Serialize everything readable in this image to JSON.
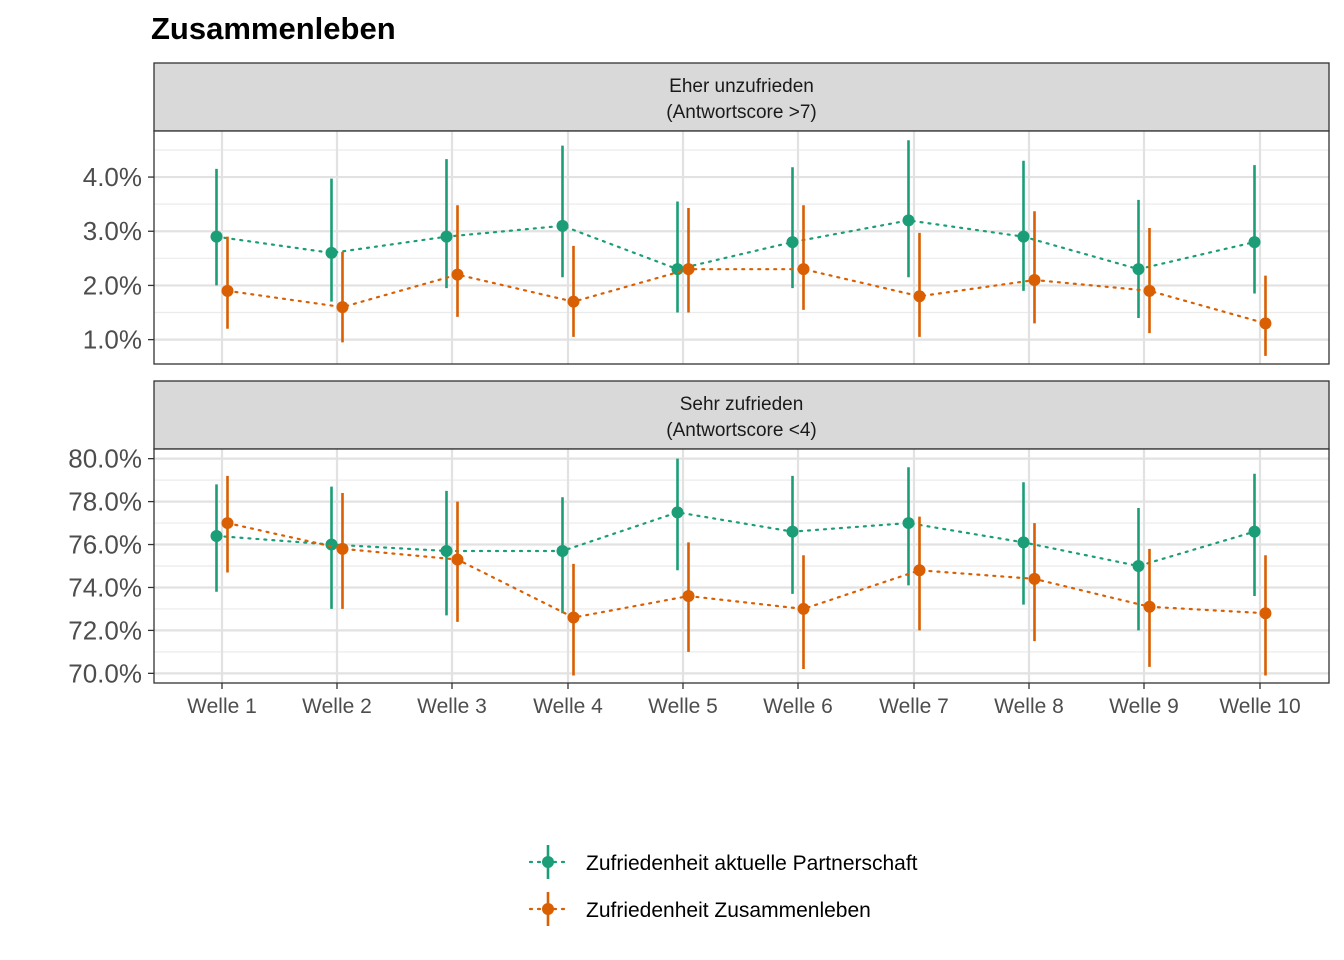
{
  "chart_data": {
    "type": "scatter",
    "title": "Zusammenleben",
    "xlabel": "",
    "ylabel": "",
    "grid": true,
    "legend_position": "bottom",
    "categories": [
      "Welle 1",
      "Welle 2",
      "Welle 3",
      "Welle 4",
      "Welle 5",
      "Welle 6",
      "Welle 7",
      "Welle 8",
      "Welle 9",
      "Welle 10"
    ],
    "series_styles": [
      {
        "name": "Zufriedenheit aktuelle Partnerschaft",
        "color": "#1b9e77"
      },
      {
        "name": "Zufriedenheit Zusammenleben",
        "color": "#d95f02"
      }
    ],
    "panels": [
      {
        "strip_line1": "Eher unzufrieden",
        "strip_line2": "(Antwortscore >7)",
        "ylim": [
          0.55,
          4.85
        ],
        "yticks": [
          1.0,
          2.0,
          3.0,
          4.0
        ],
        "ytick_labels": [
          "1.0%",
          "2.0%",
          "3.0%",
          "4.0%"
        ],
        "series": [
          {
            "name": "Zufriedenheit aktuelle Partnerschaft",
            "values": [
              2.9,
              2.6,
              2.9,
              3.1,
              2.3,
              2.8,
              3.2,
              2.9,
              2.3,
              2.8
            ],
            "lower": [
              2.0,
              1.7,
              1.95,
              2.15,
              1.5,
              1.95,
              2.15,
              1.9,
              1.4,
              1.85
            ],
            "upper": [
              4.15,
              3.97,
              4.33,
              4.58,
              3.55,
              4.18,
              4.68,
              4.3,
              3.58,
              4.22
            ]
          },
          {
            "name": "Zufriedenheit Zusammenleben",
            "values": [
              1.9,
              1.6,
              2.2,
              1.7,
              2.3,
              2.3,
              1.8,
              2.1,
              1.9,
              1.3
            ],
            "lower": [
              1.2,
              0.95,
              1.42,
              1.05,
              1.5,
              1.55,
              1.05,
              1.3,
              1.12,
              0.7
            ],
            "upper": [
              2.9,
              2.62,
              3.48,
              2.73,
              3.43,
              3.48,
              2.97,
              3.37,
              3.06,
              2.18
            ]
          }
        ]
      },
      {
        "strip_line1": "Sehr zufrieden",
        "strip_line2": "(Antwortscore <4)",
        "ylim": [
          69.55,
          80.45
        ],
        "yticks": [
          70,
          72,
          74,
          76,
          78,
          80
        ],
        "ytick_labels": [
          "70.0%",
          "72.0%",
          "74.0%",
          "76.0%",
          "78.0%",
          "80.0%"
        ],
        "series": [
          {
            "name": "Zufriedenheit aktuelle Partnerschaft",
            "values": [
              76.4,
              76.0,
              75.7,
              75.7,
              77.5,
              76.6,
              77.0,
              76.1,
              75.0,
              76.6
            ],
            "lower": [
              73.8,
              73.0,
              72.7,
              72.8,
              74.8,
              73.7,
              74.1,
              73.2,
              72.0,
              73.6
            ],
            "upper": [
              78.8,
              78.7,
              78.5,
              78.2,
              80.0,
              79.2,
              79.6,
              78.9,
              77.7,
              79.3
            ]
          },
          {
            "name": "Zufriedenheit Zusammenleben",
            "values": [
              77.0,
              75.8,
              75.3,
              72.6,
              73.6,
              73.0,
              74.8,
              74.4,
              73.1,
              72.8
            ],
            "lower": [
              74.7,
              73.0,
              72.4,
              69.9,
              71.0,
              70.2,
              72.0,
              71.5,
              70.3,
              69.9
            ],
            "upper": [
              79.2,
              78.4,
              78.0,
              75.1,
              76.1,
              75.5,
              77.3,
              77.0,
              75.8,
              75.5
            ]
          }
        ]
      }
    ]
  }
}
